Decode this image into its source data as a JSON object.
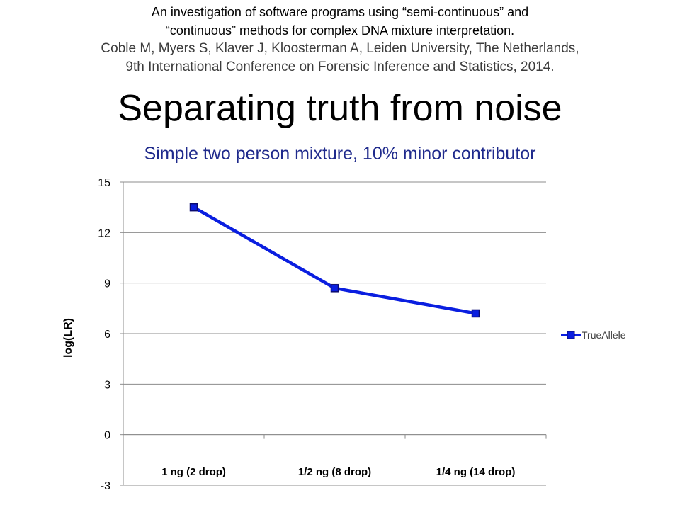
{
  "header": {
    "line1": "An investigation of software programs using “semi-continuous” and",
    "line2": "“continuous” methods for complex DNA mixture interpretation.",
    "line3": "Coble M, Myers S, Klaver J, Kloosterman A, Leiden University, The Netherlands,",
    "line4": "9th International Conference on Forensic Inference and Statistics, 2014."
  },
  "slide": {
    "title": "Separating truth from noise",
    "subtitle": "Simple two person mixture, 10% minor contributor"
  },
  "chart_data": {
    "type": "line",
    "categories": [
      "1 ng (2 drop)",
      "1/2 ng (8 drop)",
      "1/4 ng (14 drop)"
    ],
    "series": [
      {
        "name": "TrueAllele",
        "values": [
          13.5,
          8.7,
          7.2
        ],
        "color": "#0a1ee0",
        "marker": "square"
      }
    ],
    "ylabel": "log(LR)",
    "xlabel": "",
    "ylim": [
      -3,
      15
    ],
    "yticks": [
      "15",
      "12",
      "9",
      "6",
      "3",
      "0",
      "-3"
    ],
    "grid": true,
    "legend": "right"
  }
}
